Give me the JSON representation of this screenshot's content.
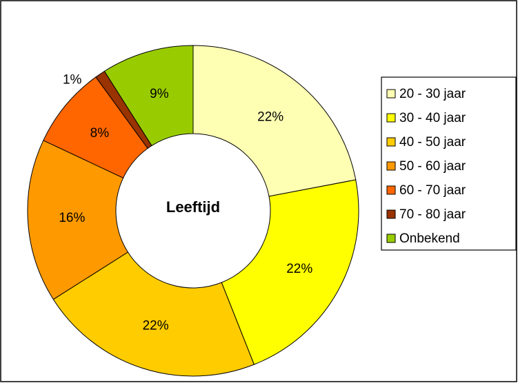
{
  "chart_data": {
    "type": "donut",
    "title": "Leeftijd",
    "categories": [
      "20 - 30 jaar",
      "30 - 40 jaar",
      "40 - 50 jaar",
      "50 - 60 jaar",
      "60 - 70 jaar",
      "70 - 80 jaar",
      "Onbekend"
    ],
    "values": [
      22,
      22,
      22,
      16,
      8,
      1,
      9
    ],
    "value_labels": [
      "22%",
      "22%",
      "22%",
      "16%",
      "8%",
      "1%",
      "9%"
    ],
    "colors": [
      "#FFFFB3",
      "#FFFF00",
      "#FFCC00",
      "#FF9900",
      "#FF6600",
      "#993300",
      "#99CC00"
    ],
    "legend": "right"
  }
}
